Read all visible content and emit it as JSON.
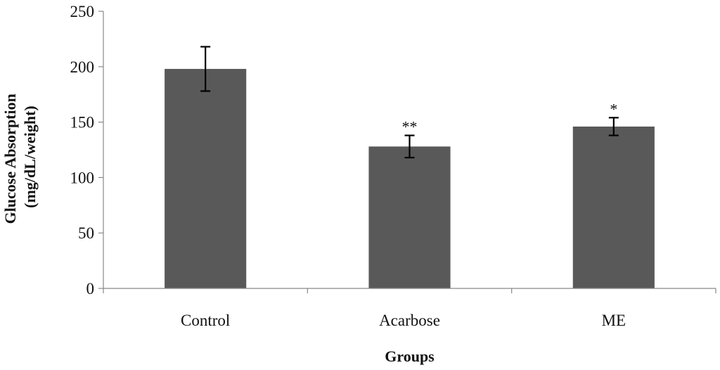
{
  "chart_data": {
    "type": "bar",
    "categories": [
      "Control",
      "Acarbose",
      "ME"
    ],
    "values": [
      198,
      128,
      146
    ],
    "errors": [
      20,
      10,
      8
    ],
    "significance": [
      "",
      "**",
      "*"
    ],
    "yticks": [
      0,
      50,
      100,
      150,
      200,
      250
    ],
    "ylim": [
      0,
      250
    ],
    "xlabel": "Groups",
    "ylabel_lines": [
      "Glucose Absorption",
      "(mg/dL/weight)"
    ],
    "grid": false,
    "bar_color": "#595959"
  }
}
